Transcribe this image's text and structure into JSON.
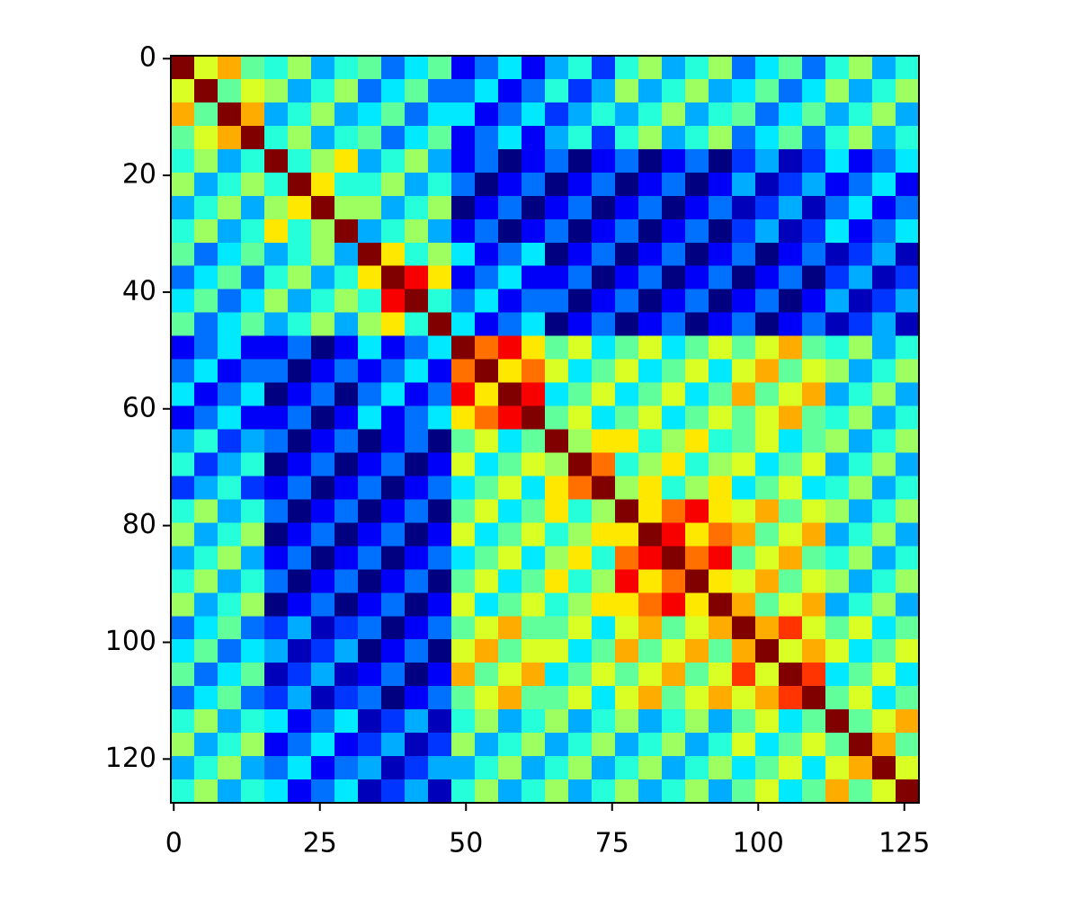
{
  "chart_data": {
    "type": "heatmap",
    "colormap": "jet",
    "xbins": [
      -0.5,
      3.5,
      7.5,
      11.5,
      15.5,
      19.5,
      23.5,
      27.5,
      31.5,
      35.5,
      39.5,
      43.5,
      47.5,
      51.5,
      55.5,
      59.5,
      63.5,
      67.5,
      71.5,
      75.5,
      79.5,
      83.5,
      87.5,
      91.5,
      95.5,
      99.5,
      103.5,
      107.5,
      111.5,
      115.5,
      119.5,
      123.5,
      127.5
    ],
    "ybins": [
      -0.5,
      3.5,
      7.5,
      11.5,
      15.5,
      19.5,
      23.5,
      27.5,
      31.5,
      35.5,
      39.5,
      43.5,
      47.5,
      51.5,
      55.5,
      59.5,
      63.5,
      67.5,
      71.5,
      75.5,
      79.5,
      83.5,
      87.5,
      91.5,
      95.5,
      99.5,
      103.5,
      107.5,
      111.5,
      115.5,
      119.5,
      123.5,
      127.5
    ],
    "xlim": [
      -0.5,
      127.5
    ],
    "ylim": [
      127.5,
      -0.5
    ],
    "xticks": [
      0,
      25,
      50,
      75,
      100,
      125
    ],
    "yticks": [
      0,
      20,
      40,
      60,
      80,
      100,
      120
    ],
    "values": [
      [
        0.95,
        0.6,
        0.7,
        0.5,
        0.45,
        0.55,
        0.35,
        0.45,
        0.5,
        0.3,
        0.4,
        0.5,
        0.2,
        0.3,
        0.4,
        0.2,
        0.35,
        0.45,
        0.25,
        0.45,
        0.55,
        0.35,
        0.45,
        0.55,
        0.3,
        0.4,
        0.5,
        0.3,
        0.45,
        0.55,
        0.35,
        0.45
      ],
      [
        0.6,
        0.95,
        0.5,
        0.6,
        0.55,
        0.35,
        0.45,
        0.55,
        0.3,
        0.4,
        0.5,
        0.3,
        0.3,
        0.4,
        0.2,
        0.3,
        0.45,
        0.25,
        0.35,
        0.55,
        0.35,
        0.45,
        0.55,
        0.35,
        0.4,
        0.5,
        0.3,
        0.4,
        0.55,
        0.35,
        0.45,
        0.55
      ],
      [
        0.7,
        0.5,
        0.95,
        0.7,
        0.35,
        0.45,
        0.55,
        0.35,
        0.4,
        0.5,
        0.3,
        0.4,
        0.4,
        0.2,
        0.3,
        0.4,
        0.25,
        0.35,
        0.45,
        0.35,
        0.45,
        0.55,
        0.35,
        0.45,
        0.5,
        0.3,
        0.4,
        0.5,
        0.35,
        0.45,
        0.55,
        0.35
      ],
      [
        0.5,
        0.6,
        0.7,
        0.95,
        0.45,
        0.55,
        0.35,
        0.45,
        0.5,
        0.3,
        0.4,
        0.5,
        0.2,
        0.3,
        0.4,
        0.2,
        0.35,
        0.45,
        0.25,
        0.45,
        0.55,
        0.35,
        0.45,
        0.55,
        0.3,
        0.4,
        0.5,
        0.3,
        0.45,
        0.55,
        0.35,
        0.45
      ],
      [
        0.45,
        0.55,
        0.35,
        0.45,
        0.95,
        0.45,
        0.55,
        0.65,
        0.35,
        0.45,
        0.55,
        0.35,
        0.2,
        0.3,
        0.1,
        0.2,
        0.3,
        0.1,
        0.2,
        0.3,
        0.1,
        0.2,
        0.3,
        0.1,
        0.25,
        0.35,
        0.15,
        0.25,
        0.4,
        0.2,
        0.3,
        0.4
      ],
      [
        0.55,
        0.35,
        0.45,
        0.55,
        0.45,
        0.95,
        0.65,
        0.45,
        0.45,
        0.55,
        0.35,
        0.45,
        0.3,
        0.1,
        0.2,
        0.3,
        0.1,
        0.2,
        0.3,
        0.1,
        0.2,
        0.3,
        0.1,
        0.2,
        0.35,
        0.15,
        0.25,
        0.35,
        0.2,
        0.3,
        0.4,
        0.2
      ],
      [
        0.35,
        0.45,
        0.55,
        0.35,
        0.55,
        0.65,
        0.95,
        0.55,
        0.55,
        0.35,
        0.45,
        0.55,
        0.1,
        0.2,
        0.3,
        0.1,
        0.2,
        0.3,
        0.1,
        0.2,
        0.3,
        0.1,
        0.2,
        0.3,
        0.15,
        0.25,
        0.35,
        0.15,
        0.3,
        0.4,
        0.2,
        0.3
      ],
      [
        0.45,
        0.55,
        0.35,
        0.45,
        0.65,
        0.45,
        0.55,
        0.95,
        0.35,
        0.45,
        0.55,
        0.35,
        0.2,
        0.3,
        0.1,
        0.2,
        0.3,
        0.1,
        0.2,
        0.3,
        0.1,
        0.2,
        0.3,
        0.1,
        0.25,
        0.35,
        0.15,
        0.25,
        0.4,
        0.2,
        0.3,
        0.4
      ],
      [
        0.5,
        0.3,
        0.4,
        0.5,
        0.35,
        0.45,
        0.55,
        0.35,
        0.95,
        0.65,
        0.45,
        0.55,
        0.4,
        0.2,
        0.3,
        0.4,
        0.1,
        0.2,
        0.3,
        0.1,
        0.2,
        0.3,
        0.1,
        0.2,
        0.3,
        0.1,
        0.2,
        0.3,
        0.15,
        0.25,
        0.35,
        0.15
      ],
      [
        0.3,
        0.4,
        0.5,
        0.3,
        0.45,
        0.55,
        0.35,
        0.45,
        0.65,
        0.95,
        0.85,
        0.65,
        0.2,
        0.3,
        0.4,
        0.2,
        0.2,
        0.3,
        0.1,
        0.2,
        0.3,
        0.1,
        0.2,
        0.3,
        0.1,
        0.2,
        0.3,
        0.1,
        0.25,
        0.35,
        0.15,
        0.25
      ],
      [
        0.4,
        0.5,
        0.3,
        0.4,
        0.55,
        0.35,
        0.45,
        0.55,
        0.45,
        0.85,
        0.95,
        0.45,
        0.3,
        0.4,
        0.2,
        0.3,
        0.3,
        0.1,
        0.2,
        0.3,
        0.1,
        0.2,
        0.3,
        0.1,
        0.2,
        0.3,
        0.1,
        0.2,
        0.35,
        0.15,
        0.25,
        0.35
      ],
      [
        0.5,
        0.3,
        0.4,
        0.5,
        0.35,
        0.45,
        0.55,
        0.35,
        0.55,
        0.65,
        0.45,
        0.95,
        0.4,
        0.2,
        0.3,
        0.4,
        0.1,
        0.2,
        0.3,
        0.1,
        0.2,
        0.3,
        0.1,
        0.2,
        0.3,
        0.1,
        0.2,
        0.3,
        0.15,
        0.25,
        0.35,
        0.15
      ],
      [
        0.2,
        0.3,
        0.4,
        0.2,
        0.2,
        0.3,
        0.1,
        0.2,
        0.4,
        0.2,
        0.3,
        0.4,
        0.95,
        0.75,
        0.85,
        0.65,
        0.5,
        0.6,
        0.4,
        0.5,
        0.6,
        0.4,
        0.5,
        0.6,
        0.5,
        0.6,
        0.7,
        0.5,
        0.45,
        0.55,
        0.35,
        0.45
      ],
      [
        0.3,
        0.4,
        0.2,
        0.3,
        0.3,
        0.1,
        0.2,
        0.3,
        0.2,
        0.3,
        0.4,
        0.2,
        0.75,
        0.95,
        0.65,
        0.75,
        0.6,
        0.4,
        0.5,
        0.6,
        0.4,
        0.5,
        0.6,
        0.4,
        0.6,
        0.7,
        0.5,
        0.6,
        0.55,
        0.35,
        0.45,
        0.55
      ],
      [
        0.4,
        0.2,
        0.3,
        0.4,
        0.1,
        0.2,
        0.3,
        0.1,
        0.3,
        0.4,
        0.2,
        0.3,
        0.85,
        0.65,
        0.95,
        0.85,
        0.4,
        0.5,
        0.6,
        0.4,
        0.5,
        0.6,
        0.4,
        0.5,
        0.7,
        0.5,
        0.6,
        0.7,
        0.35,
        0.45,
        0.55,
        0.35
      ],
      [
        0.2,
        0.3,
        0.4,
        0.2,
        0.2,
        0.3,
        0.1,
        0.2,
        0.4,
        0.2,
        0.3,
        0.4,
        0.65,
        0.75,
        0.85,
        0.95,
        0.5,
        0.6,
        0.4,
        0.5,
        0.6,
        0.4,
        0.5,
        0.6,
        0.5,
        0.6,
        0.7,
        0.5,
        0.45,
        0.55,
        0.35,
        0.45
      ],
      [
        0.35,
        0.45,
        0.25,
        0.35,
        0.3,
        0.1,
        0.2,
        0.3,
        0.1,
        0.2,
        0.3,
        0.1,
        0.5,
        0.6,
        0.4,
        0.5,
        0.95,
        0.55,
        0.65,
        0.65,
        0.45,
        0.55,
        0.65,
        0.45,
        0.5,
        0.6,
        0.4,
        0.5,
        0.55,
        0.35,
        0.45,
        0.55
      ],
      [
        0.45,
        0.25,
        0.35,
        0.45,
        0.1,
        0.2,
        0.3,
        0.1,
        0.2,
        0.3,
        0.1,
        0.2,
        0.6,
        0.4,
        0.5,
        0.6,
        0.55,
        0.95,
        0.75,
        0.45,
        0.55,
        0.65,
        0.45,
        0.55,
        0.6,
        0.4,
        0.5,
        0.6,
        0.35,
        0.45,
        0.55,
        0.35
      ],
      [
        0.25,
        0.35,
        0.45,
        0.25,
        0.2,
        0.3,
        0.1,
        0.2,
        0.3,
        0.1,
        0.2,
        0.3,
        0.4,
        0.5,
        0.6,
        0.4,
        0.65,
        0.75,
        0.95,
        0.55,
        0.65,
        0.45,
        0.55,
        0.65,
        0.4,
        0.5,
        0.6,
        0.4,
        0.45,
        0.55,
        0.35,
        0.45
      ],
      [
        0.45,
        0.55,
        0.35,
        0.45,
        0.3,
        0.1,
        0.2,
        0.3,
        0.1,
        0.2,
        0.3,
        0.1,
        0.5,
        0.6,
        0.4,
        0.5,
        0.65,
        0.45,
        0.55,
        0.95,
        0.65,
        0.75,
        0.85,
        0.65,
        0.6,
        0.7,
        0.5,
        0.6,
        0.55,
        0.35,
        0.45,
        0.55
      ],
      [
        0.55,
        0.35,
        0.45,
        0.55,
        0.1,
        0.2,
        0.3,
        0.1,
        0.2,
        0.3,
        0.1,
        0.2,
        0.6,
        0.4,
        0.5,
        0.6,
        0.45,
        0.55,
        0.65,
        0.65,
        0.95,
        0.85,
        0.65,
        0.75,
        0.7,
        0.5,
        0.6,
        0.7,
        0.35,
        0.45,
        0.55,
        0.35
      ],
      [
        0.35,
        0.45,
        0.55,
        0.35,
        0.2,
        0.3,
        0.1,
        0.2,
        0.3,
        0.1,
        0.2,
        0.3,
        0.4,
        0.5,
        0.6,
        0.4,
        0.55,
        0.65,
        0.45,
        0.75,
        0.85,
        0.95,
        0.75,
        0.85,
        0.5,
        0.6,
        0.7,
        0.5,
        0.45,
        0.55,
        0.35,
        0.45
      ],
      [
        0.45,
        0.55,
        0.35,
        0.45,
        0.3,
        0.1,
        0.2,
        0.3,
        0.1,
        0.2,
        0.3,
        0.1,
        0.5,
        0.6,
        0.4,
        0.5,
        0.65,
        0.45,
        0.55,
        0.85,
        0.65,
        0.75,
        0.95,
        0.65,
        0.6,
        0.7,
        0.5,
        0.6,
        0.55,
        0.35,
        0.45,
        0.55
      ],
      [
        0.55,
        0.35,
        0.45,
        0.55,
        0.1,
        0.2,
        0.3,
        0.1,
        0.2,
        0.3,
        0.1,
        0.2,
        0.6,
        0.4,
        0.5,
        0.6,
        0.45,
        0.55,
        0.65,
        0.65,
        0.75,
        0.85,
        0.65,
        0.95,
        0.7,
        0.5,
        0.6,
        0.7,
        0.35,
        0.45,
        0.55,
        0.35
      ],
      [
        0.3,
        0.4,
        0.5,
        0.3,
        0.25,
        0.35,
        0.15,
        0.25,
        0.3,
        0.1,
        0.2,
        0.3,
        0.5,
        0.6,
        0.7,
        0.5,
        0.5,
        0.6,
        0.4,
        0.6,
        0.7,
        0.5,
        0.6,
        0.7,
        0.95,
        0.7,
        0.8,
        0.6,
        0.5,
        0.6,
        0.4,
        0.5
      ],
      [
        0.4,
        0.5,
        0.3,
        0.4,
        0.35,
        0.15,
        0.25,
        0.35,
        0.1,
        0.2,
        0.3,
        0.1,
        0.6,
        0.7,
        0.5,
        0.6,
        0.6,
        0.4,
        0.5,
        0.7,
        0.5,
        0.6,
        0.7,
        0.5,
        0.7,
        0.95,
        0.6,
        0.7,
        0.6,
        0.4,
        0.5,
        0.6
      ],
      [
        0.5,
        0.3,
        0.4,
        0.5,
        0.15,
        0.25,
        0.35,
        0.15,
        0.2,
        0.3,
        0.1,
        0.2,
        0.7,
        0.5,
        0.6,
        0.7,
        0.4,
        0.5,
        0.6,
        0.5,
        0.6,
        0.7,
        0.5,
        0.6,
        0.8,
        0.6,
        0.95,
        0.8,
        0.4,
        0.5,
        0.6,
        0.4
      ],
      [
        0.3,
        0.4,
        0.5,
        0.3,
        0.25,
        0.35,
        0.15,
        0.25,
        0.3,
        0.1,
        0.2,
        0.3,
        0.5,
        0.6,
        0.7,
        0.5,
        0.5,
        0.6,
        0.4,
        0.6,
        0.7,
        0.5,
        0.6,
        0.7,
        0.6,
        0.7,
        0.8,
        0.95,
        0.5,
        0.6,
        0.4,
        0.5
      ],
      [
        0.45,
        0.55,
        0.35,
        0.45,
        0.4,
        0.2,
        0.3,
        0.4,
        0.15,
        0.25,
        0.35,
        0.15,
        0.45,
        0.55,
        0.35,
        0.45,
        0.55,
        0.35,
        0.45,
        0.55,
        0.35,
        0.45,
        0.55,
        0.35,
        0.5,
        0.6,
        0.4,
        0.5,
        0.95,
        0.5,
        0.6,
        0.7
      ],
      [
        0.55,
        0.35,
        0.45,
        0.55,
        0.2,
        0.3,
        0.4,
        0.2,
        0.25,
        0.35,
        0.15,
        0.25,
        0.55,
        0.35,
        0.45,
        0.55,
        0.35,
        0.45,
        0.55,
        0.35,
        0.45,
        0.55,
        0.35,
        0.45,
        0.6,
        0.4,
        0.5,
        0.6,
        0.5,
        0.95,
        0.7,
        0.5
      ],
      [
        0.35,
        0.45,
        0.55,
        0.35,
        0.3,
        0.4,
        0.2,
        0.3,
        0.35,
        0.15,
        0.25,
        0.35,
        0.35,
        0.45,
        0.55,
        0.35,
        0.45,
        0.55,
        0.35,
        0.45,
        0.55,
        0.35,
        0.45,
        0.55,
        0.4,
        0.5,
        0.6,
        0.4,
        0.6,
        0.7,
        0.95,
        0.6
      ],
      [
        0.45,
        0.55,
        0.35,
        0.45,
        0.4,
        0.2,
        0.3,
        0.4,
        0.15,
        0.25,
        0.35,
        0.15,
        0.45,
        0.55,
        0.35,
        0.45,
        0.55,
        0.35,
        0.45,
        0.55,
        0.35,
        0.45,
        0.55,
        0.35,
        0.5,
        0.6,
        0.4,
        0.5,
        0.7,
        0.5,
        0.6,
        0.95
      ]
    ]
  }
}
